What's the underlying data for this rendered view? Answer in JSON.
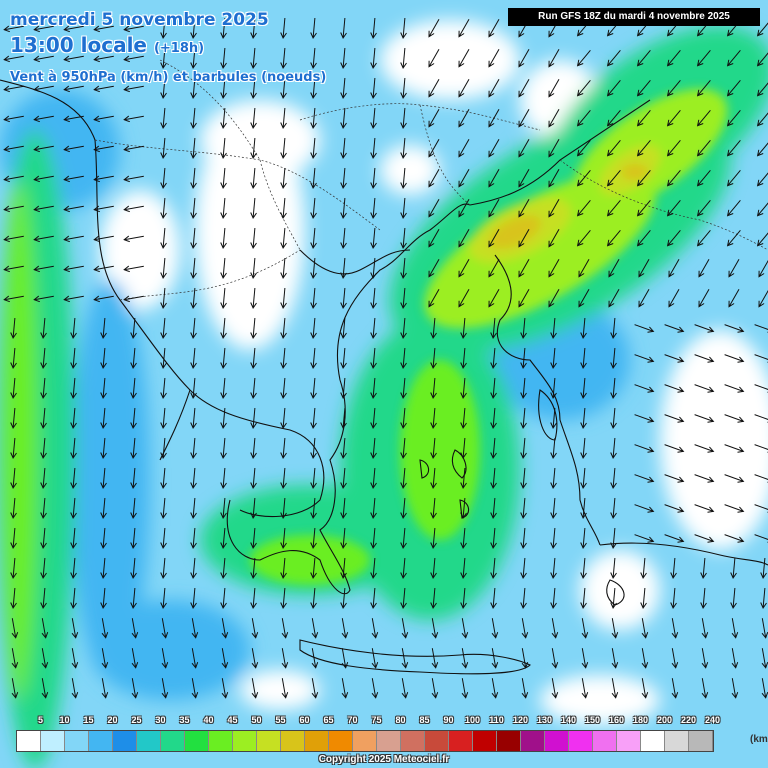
{
  "header": {
    "date": "mercredi 5 novembre 2025",
    "time": "13:00 locale",
    "lead": "(+18h)",
    "parameter": "Vent à 950hPa (km/h) et barbules (noeuds)",
    "run": "Run GFS 18Z du mardi 4 novembre 2025"
  },
  "legend": {
    "values": [
      "5",
      "10",
      "15",
      "20",
      "25",
      "30",
      "35",
      "40",
      "45",
      "50",
      "55",
      "60",
      "65",
      "70",
      "75",
      "80",
      "85",
      "90",
      "100",
      "110",
      "120",
      "130",
      "140",
      "150",
      "160",
      "180",
      "200",
      "220",
      "240"
    ],
    "colors": [
      "#ffffff",
      "#bfefff",
      "#82d6f7",
      "#43b6f2",
      "#1e8ee8",
      "#22c8c8",
      "#22d88a",
      "#22e040",
      "#6aee22",
      "#9cee22",
      "#c6e022",
      "#d8c41a",
      "#e0a008",
      "#f08a00",
      "#f0a060",
      "#d8a090",
      "#d07060",
      "#c84a3a",
      "#d82020",
      "#c00000",
      "#980000",
      "#a0108a",
      "#d010d0",
      "#f030f0",
      "#f070f0",
      "#f8a0f8",
      "#ffffff",
      "#d8d8d8",
      "#b8b8b8"
    ],
    "unit": "(km/h)"
  },
  "copyright": "Copyright 2025 Meteociel.fr",
  "map": {
    "region": "Grèce / mer Égée / Balkans",
    "wind_shading_colors": {
      "calm": "#ffffff",
      "light": "#bfefff",
      "moderate": "#82d6f7",
      "fresh": "#43b6f2",
      "strong": "#22d88a",
      "very_strong": "#9cee22",
      "gale": "#d8c41a",
      "peak": "#e0a008"
    }
  }
}
